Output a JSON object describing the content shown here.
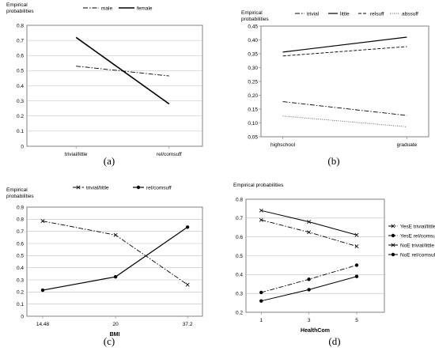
{
  "chart_data": [
    {
      "type": "line",
      "id": "a",
      "caption": "(a)",
      "ylabel_lines": [
        "Empirical",
        "probabilities"
      ],
      "xlabel": "",
      "categories": [
        "trivial/little",
        "rel/comsuff"
      ],
      "ylim": [
        0,
        0.8
      ],
      "yticks": [
        "0",
        "0.1",
        "0.2",
        "0.3",
        "0.4",
        "0.5",
        "0.6",
        "0.7",
        "0.8"
      ],
      "grid": true,
      "legend_position": "top",
      "series": [
        {
          "name": "male",
          "values": [
            0.53,
            0.465
          ],
          "style": "dashdot",
          "color": "#000000",
          "width": 0.9
        },
        {
          "name": "female",
          "values": [
            0.72,
            0.28
          ],
          "style": "solid",
          "color": "#000000",
          "width": 1.6
        }
      ]
    },
    {
      "type": "line",
      "id": "b",
      "caption": "(b)",
      "ylabel_lines": [
        "Empirical",
        "probabilities"
      ],
      "xlabel": "",
      "categories": [
        "highschool",
        "graduate"
      ],
      "ylim": [
        0.05,
        0.45
      ],
      "yticks": [
        "0,05",
        "0,10",
        "0,15",
        "0,20",
        "0,25",
        "0,30",
        "0,35",
        "0,40",
        "0,45"
      ],
      "grid": false,
      "legend_position": "top",
      "series": [
        {
          "name": "trivial",
          "values": [
            0.177,
            0.127
          ],
          "style": "dashdot",
          "color": "#000000",
          "width": 0.9
        },
        {
          "name": "little",
          "values": [
            0.356,
            0.41
          ],
          "style": "solid",
          "color": "#000000",
          "width": 1.2
        },
        {
          "name": "relsuff",
          "values": [
            0.342,
            0.376
          ],
          "style": "dashed",
          "color": "#000000",
          "width": 0.9
        },
        {
          "name": "abssuff",
          "values": [
            0.125,
            0.086
          ],
          "style": "dotted",
          "color": "#555555",
          "width": 0.9
        }
      ]
    },
    {
      "type": "line",
      "id": "c",
      "caption": "(c)",
      "ylabel_lines": [
        "Empirical",
        "probabilities"
      ],
      "xlabel": "BMI",
      "categories": [
        "14.48",
        "20",
        "37.2"
      ],
      "ylim": [
        0,
        0.9
      ],
      "yticks": [
        "0",
        "0.1",
        "0.2",
        "0.3",
        "0.4",
        "0.5",
        "0.6",
        "0.7",
        "0.8",
        "0.9"
      ],
      "grid": true,
      "legend_position": "top",
      "series": [
        {
          "name": "trivial/little",
          "values": [
            0.785,
            0.67,
            0.26
          ],
          "style": "dashdot",
          "marker": "x",
          "color": "#000000",
          "width": 0.9
        },
        {
          "name": "rel/comsuff",
          "values": [
            0.215,
            0.325,
            0.735
          ],
          "style": "solid",
          "marker": "dot",
          "color": "#000000",
          "width": 1.2
        }
      ]
    },
    {
      "type": "line",
      "id": "d",
      "caption": "(d)",
      "ylabel_lines": [
        "Empirical probabilities"
      ],
      "xlabel": "HealthCom",
      "categories": [
        "1",
        "3",
        "5"
      ],
      "ylim": [
        0.2,
        0.8
      ],
      "yticks": [
        "0.2",
        "0.3",
        "0.4",
        "0.5",
        "0.6",
        "0.7",
        "0.8"
      ],
      "grid": true,
      "legend_position": "right",
      "series": [
        {
          "name": "YesE trivial/little",
          "values": [
            0.69,
            0.625,
            0.55
          ],
          "style": "dashdot",
          "marker": "x",
          "color": "#000000",
          "width": 0.9
        },
        {
          "name": "YesE rel/comsuff",
          "values": [
            0.305,
            0.375,
            0.45
          ],
          "style": "dashdot",
          "marker": "dot",
          "color": "#000000",
          "width": 0.9
        },
        {
          "name": "NoE trivial/little",
          "values": [
            0.74,
            0.68,
            0.61
          ],
          "style": "solid",
          "marker": "x",
          "color": "#000000",
          "width": 1.0
        },
        {
          "name": "NoE rel/comsuff",
          "values": [
            0.26,
            0.32,
            0.39
          ],
          "style": "solid",
          "marker": "dot",
          "color": "#000000",
          "width": 1.0
        }
      ]
    }
  ]
}
